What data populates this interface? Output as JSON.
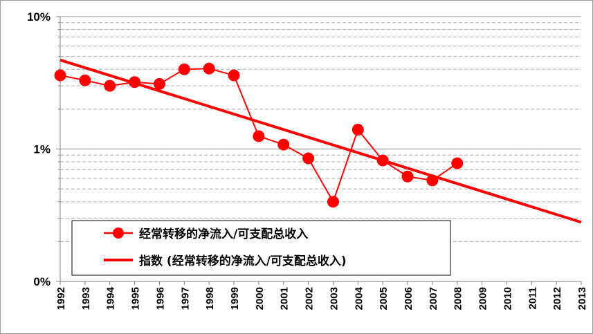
{
  "chart_data": {
    "type": "line",
    "y_scale": "log",
    "ylim": [
      0.1,
      10
    ],
    "y_ticks": [
      {
        "value": 10,
        "label": "10%"
      },
      {
        "value": 1,
        "label": "1%"
      },
      {
        "value": 0.1,
        "label": "0%"
      }
    ],
    "categories": [
      "1992",
      "1993",
      "1994",
      "1995",
      "1996",
      "1997",
      "1998",
      "1999",
      "2000",
      "2001",
      "2002",
      "2003",
      "2004",
      "2005",
      "2006",
      "2007",
      "2008",
      "2009",
      "2010",
      "2011",
      "2012",
      "2013"
    ],
    "grid": "dashed-minor-horizontal",
    "legend_position": "bottom-left-inside",
    "series": [
      {
        "name": "经常转移的净流入/可支配总收入",
        "style": "line-with-markers",
        "color": "#ff0000",
        "values": [
          3.6,
          3.3,
          3.0,
          3.2,
          3.1,
          4.0,
          4.05,
          3.6,
          1.25,
          1.08,
          0.85,
          0.4,
          1.4,
          0.82,
          0.62,
          0.58,
          0.78,
          null,
          null,
          null,
          null,
          null
        ]
      },
      {
        "name": "指数 (经常转移的净流入/可支配总收入)",
        "style": "trendline-exponential",
        "color": "#ff0000",
        "start": {
          "category": "1992",
          "value": 4.7
        },
        "end": {
          "category": "2013",
          "value": 0.28
        }
      }
    ]
  }
}
